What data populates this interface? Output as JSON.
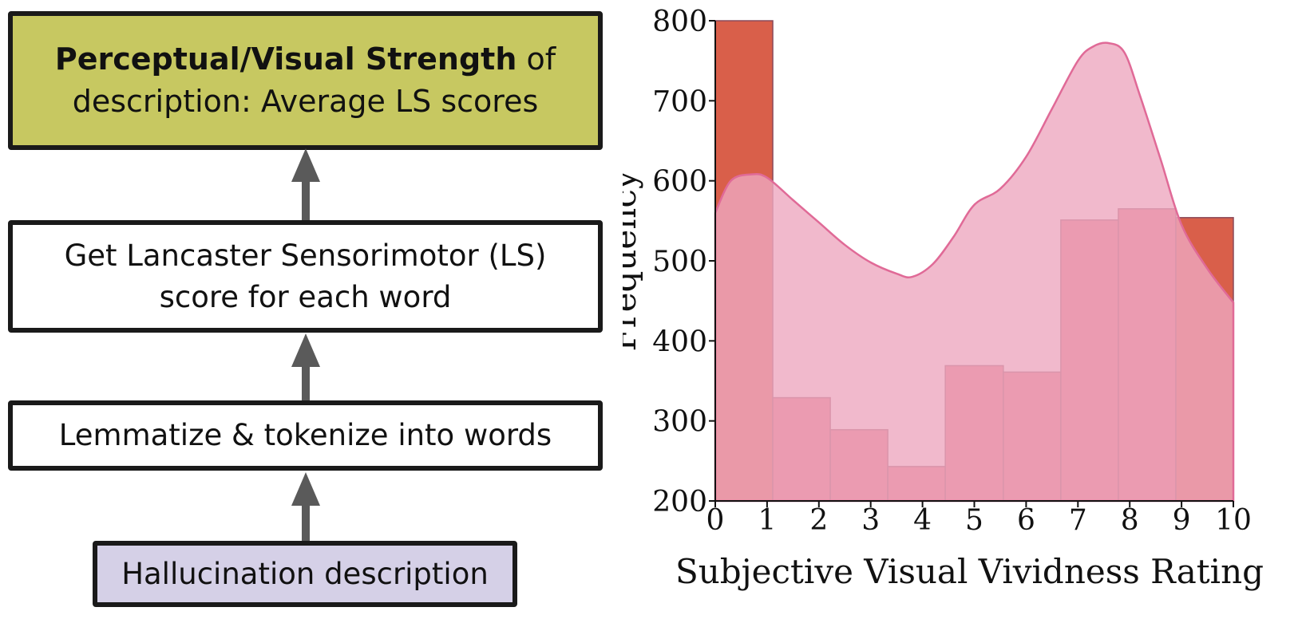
{
  "flowchart": {
    "top_box": {
      "bold": "Perceptual/Visual Strength",
      "rest": " of",
      "line2": "description: Average LS scores",
      "color": "#c7c861"
    },
    "ls_box": {
      "line1": "Get Lancaster Sensorimotor (LS)",
      "line2": "score for each word"
    },
    "lemmatize_box": {
      "label": "Lemmatize & tokenize into words"
    },
    "hallucination_box": {
      "label": "Hallucination description",
      "color": "#d5d0e7"
    },
    "arrow_color": "#5a5a5a"
  },
  "chart_data": {
    "type": "bar",
    "xlabel": "Subjective Visual Vividness Rating",
    "ylabel": "Frequency",
    "xlim": [
      0,
      10
    ],
    "ylim": [
      200,
      800
    ],
    "xticks": [
      0,
      1,
      2,
      3,
      4,
      5,
      6,
      7,
      8,
      9,
      10
    ],
    "yticks": [
      200,
      300,
      400,
      500,
      600,
      700,
      800
    ],
    "bins": [
      {
        "x0": 0.0,
        "x1": 1.11,
        "value": 800
      },
      {
        "x0": 1.11,
        "x1": 2.22,
        "value": 329
      },
      {
        "x0": 2.22,
        "x1": 3.33,
        "value": 289
      },
      {
        "x0": 3.33,
        "x1": 4.44,
        "value": 243
      },
      {
        "x0": 4.44,
        "x1": 5.56,
        "value": 369
      },
      {
        "x0": 5.56,
        "x1": 6.67,
        "value": 361
      },
      {
        "x0": 6.67,
        "x1": 7.78,
        "value": 551
      },
      {
        "x0": 7.78,
        "x1": 8.89,
        "value": 565
      },
      {
        "x0": 8.89,
        "x1": 10.0,
        "value": 554
      }
    ],
    "density_curve": {
      "x": [
        0,
        0.3,
        0.7,
        1.0,
        1.5,
        2.0,
        2.5,
        3.0,
        3.5,
        3.8,
        4.2,
        4.6,
        5.0,
        5.5,
        6.0,
        6.5,
        7.0,
        7.3,
        7.6,
        7.9,
        8.2,
        8.6,
        9.0,
        9.5,
        10.0
      ],
      "y": [
        560,
        600,
        608,
        604,
        576,
        548,
        520,
        498,
        484,
        480,
        496,
        530,
        570,
        590,
        630,
        690,
        750,
        768,
        772,
        760,
        706,
        626,
        545,
        490,
        448
      ]
    },
    "colors": {
      "bar_fill": "#e06878",
      "bar_stroke": "#8a4a5a",
      "overflow_fill": "#d95f4a",
      "density_fill": "#eda7bf",
      "density_stroke": "#e06a97"
    }
  }
}
